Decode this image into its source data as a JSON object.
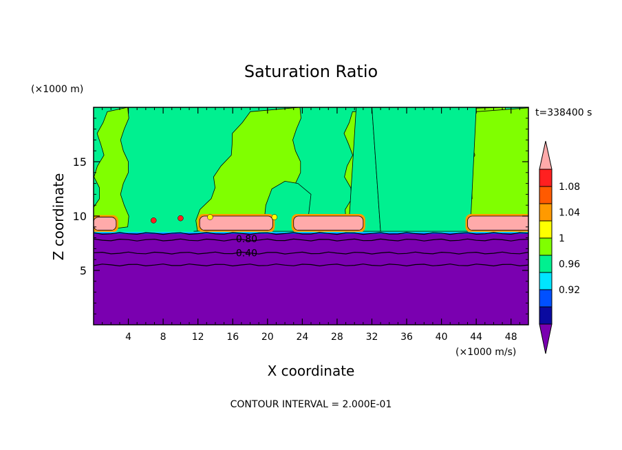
{
  "chart_data": {
    "type": "heatmap",
    "title": "Saturation Ratio",
    "xlabel": "X coordinate",
    "ylabel": "Z coordinate",
    "x_unit": "(×1000 m/s)",
    "y_unit": "(×1000 m)",
    "time_label": "t=338400 s",
    "footer": "CONTOUR INTERVAL = 2.000E-01",
    "xlim": [
      0,
      50
    ],
    "ylim": [
      0,
      20
    ],
    "x_ticks": [
      4,
      8,
      12,
      16,
      20,
      24,
      28,
      32,
      36,
      40,
      44,
      48
    ],
    "y_ticks": [
      5,
      10,
      15
    ],
    "grid": false,
    "colorbar": {
      "levels": [
        0.92,
        0.96,
        1.0,
        1.04,
        1.08
      ],
      "tick_labels": [
        "0.92",
        "0.96",
        "1",
        "1.04",
        "1.08"
      ],
      "colors": [
        "#7a00b0",
        "#0a0aa0",
        "#0050ff",
        "#00e5ff",
        "#00f090",
        "#80ff00",
        "#ffff00",
        "#ff9a00",
        "#ff5a00",
        "#ff2020",
        "#ffaaaa"
      ],
      "extend": "both"
    },
    "contour_labels": [
      {
        "text": "0.80",
        "x": 17.6,
        "y": 7.9
      },
      {
        "text": "0.40",
        "x": 17.6,
        "y": 6.6
      }
    ],
    "contours_z": [
      8.4,
      7.8,
      6.6,
      5.5
    ]
  }
}
